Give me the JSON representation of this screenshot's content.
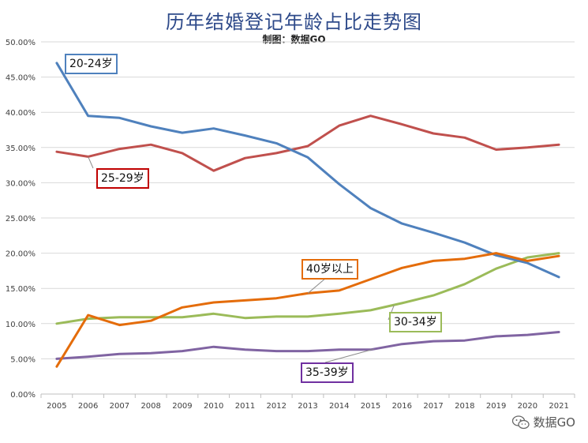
{
  "chart_data": {
    "type": "line",
    "title": "历年结婚登记年龄占比走势图",
    "subtitle": "制图：数据GO",
    "categories": [
      "2005",
      "2006",
      "2007",
      "2008",
      "2009",
      "2010",
      "2011",
      "2012",
      "2013",
      "2014",
      "2015",
      "2016",
      "2017",
      "2018",
      "2019",
      "2020",
      "2021"
    ],
    "y_ticks": [
      "0.00%",
      "5.00%",
      "10.00%",
      "15.00%",
      "20.00%",
      "25.00%",
      "30.00%",
      "35.00%",
      "40.00%",
      "45.00%",
      "50.00%"
    ],
    "ylim": [
      0,
      50
    ],
    "grid": true,
    "series": [
      {
        "name": "20-24岁",
        "color": "#4f81bd",
        "values": [
          47.0,
          39.5,
          39.2,
          38.0,
          37.1,
          37.7,
          36.7,
          35.6,
          33.6,
          29.8,
          26.4,
          24.2,
          22.9,
          21.5,
          19.7,
          18.6,
          16.6
        ]
      },
      {
        "name": "25-29岁",
        "color": "#c0504d",
        "values": [
          34.4,
          33.7,
          34.8,
          35.4,
          34.2,
          31.7,
          33.5,
          34.2,
          35.2,
          38.1,
          39.5,
          38.3,
          37.0,
          36.4,
          34.7,
          35.0,
          35.4
        ]
      },
      {
        "name": "30-34岁",
        "color": "#9bbb59",
        "values": [
          10.0,
          10.7,
          10.9,
          10.9,
          10.9,
          11.4,
          10.8,
          11.0,
          11.0,
          11.4,
          11.9,
          12.9,
          14.0,
          15.6,
          17.8,
          19.4,
          20.0
        ]
      },
      {
        "name": "35-39岁",
        "color": "#8064a2",
        "values": [
          5.0,
          5.3,
          5.7,
          5.8,
          6.1,
          6.7,
          6.3,
          6.1,
          6.1,
          6.3,
          6.3,
          7.1,
          7.5,
          7.6,
          8.2,
          8.4,
          8.8
        ]
      },
      {
        "name": "40岁以上",
        "color": "#e46c0a",
        "values": [
          3.9,
          11.2,
          9.8,
          10.4,
          12.3,
          13.0,
          13.3,
          13.6,
          14.3,
          14.7,
          16.3,
          17.9,
          18.9,
          19.2,
          20.0,
          18.9,
          19.6
        ]
      }
    ]
  },
  "watermark": {
    "text": "数据GO",
    "icon": "wechat-icon"
  }
}
